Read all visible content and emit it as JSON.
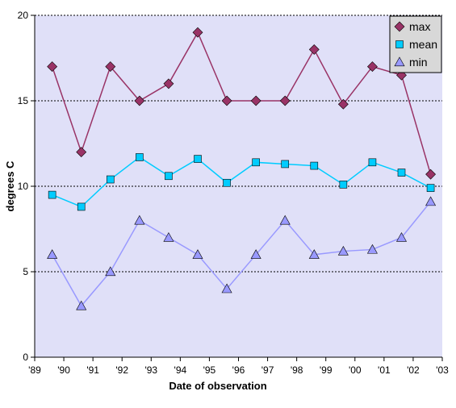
{
  "chart_data": {
    "type": "line",
    "title": "",
    "xlabel": "Date of observation",
    "ylabel": "degrees C",
    "ylim": [
      0,
      20
    ],
    "yticks": [
      0,
      5,
      10,
      15,
      20
    ],
    "xlim": [
      1989,
      2003
    ],
    "xticks": [
      {
        "value": 1989,
        "label": "'89"
      },
      {
        "value": 1990,
        "label": "'90"
      },
      {
        "value": 1991,
        "label": "'91"
      },
      {
        "value": 1992,
        "label": "'92"
      },
      {
        "value": 1993,
        "label": "'93"
      },
      {
        "value": 1994,
        "label": "'94"
      },
      {
        "value": 1995,
        "label": "'95"
      },
      {
        "value": 1996,
        "label": "'96"
      },
      {
        "value": 1997,
        "label": "'97"
      },
      {
        "value": 1998,
        "label": "'98"
      },
      {
        "value": 1999,
        "label": "'99"
      },
      {
        "value": 2000,
        "label": "'00"
      },
      {
        "value": 2001,
        "label": "'01"
      },
      {
        "value": 2002,
        "label": "'02"
      },
      {
        "value": 2003,
        "label": "'03"
      }
    ],
    "x": [
      1989.6,
      1990.6,
      1991.6,
      1992.6,
      1993.6,
      1994.6,
      1995.6,
      1996.6,
      1997.6,
      1998.6,
      1999.6,
      2000.6,
      2001.6,
      2002.6
    ],
    "grid": "horizontal dotted",
    "legend_position": "top-right",
    "background": "#e0e0f8",
    "series": [
      {
        "name": "max",
        "marker": "diamond",
        "color": "#993366",
        "values": [
          17,
          12,
          17,
          15,
          16,
          19,
          15,
          15,
          15,
          18,
          14.8,
          17,
          16.5,
          10.7
        ]
      },
      {
        "name": "mean",
        "marker": "square",
        "color": "#00ccff",
        "values": [
          9.5,
          8.8,
          10.4,
          11.7,
          10.6,
          11.6,
          10.2,
          11.4,
          11.3,
          11.2,
          10.1,
          11.4,
          10.8,
          9.9
        ]
      },
      {
        "name": "min",
        "marker": "triangle",
        "color": "#9999ff",
        "values": [
          6,
          3,
          5,
          8,
          7,
          6,
          4,
          6,
          8,
          6,
          6.2,
          6.3,
          7,
          9.1
        ]
      }
    ]
  }
}
